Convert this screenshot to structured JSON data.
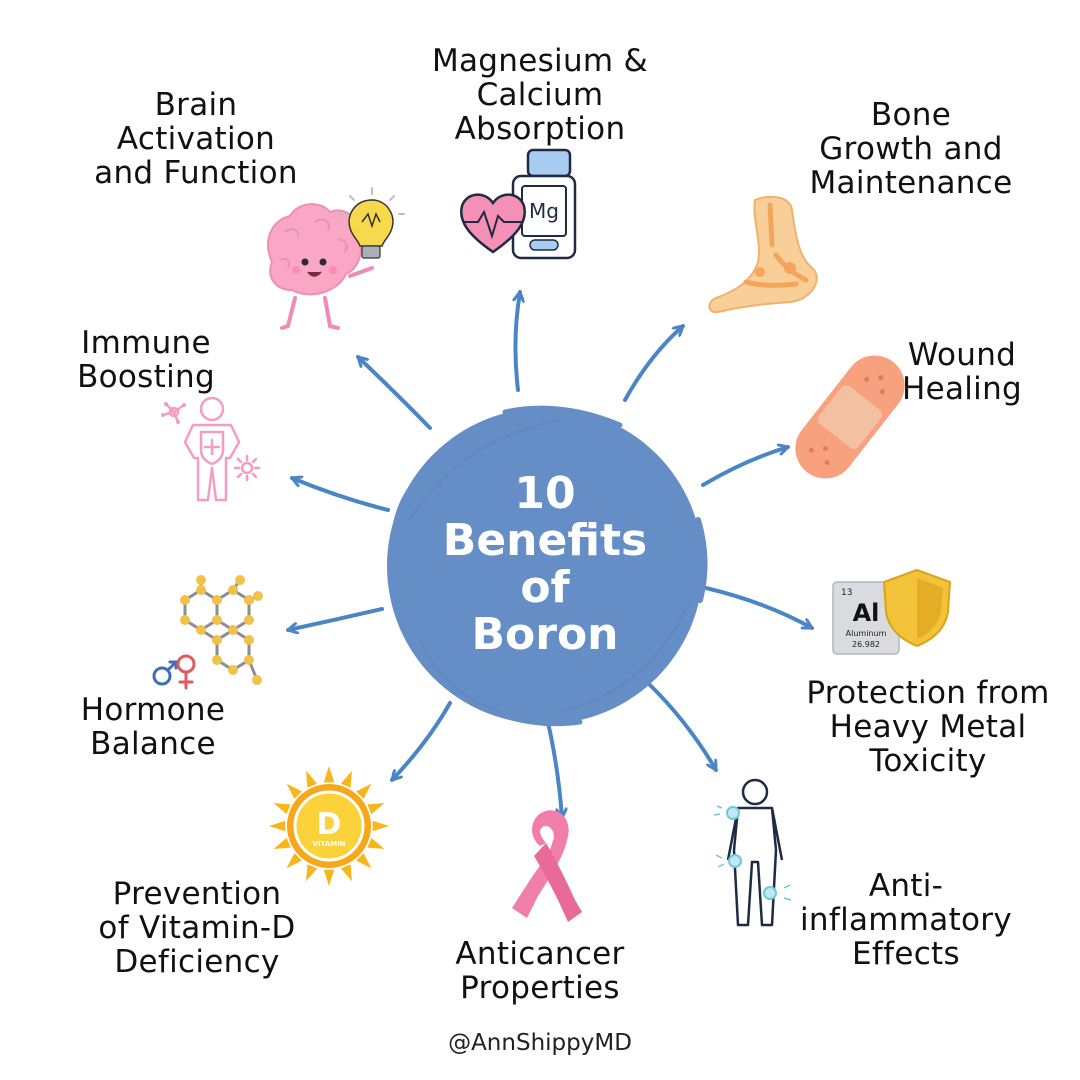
{
  "center": {
    "title": "10\nBenefits\nof\nBoron",
    "fill_color": "#668ec6"
  },
  "arrow_color": "#4a86c5",
  "benefits": [
    {
      "label": "Magnesium &\nCalcium\nAbsorption",
      "icon": "magnesium-bottle-heart-icon"
    },
    {
      "label": "Bone\nGrowth and\nMaintenance",
      "icon": "foot-bone-icon"
    },
    {
      "label": "Wound\nHealing",
      "icon": "bandage-icon"
    },
    {
      "label": "Protection from\nHeavy Metal\nToxicity",
      "icon": "aluminum-shield-icon"
    },
    {
      "label": "Anti-\ninflammatory\nEffects",
      "icon": "body-joints-icon"
    },
    {
      "label": "Anticancer\nProperties",
      "icon": "pink-ribbon-icon"
    },
    {
      "label": "Prevention\nof Vitamin-D\nDeficiency",
      "icon": "vitamin-d-sun-icon"
    },
    {
      "label": "Hormone\nBalance",
      "icon": "hormone-molecule-icon"
    },
    {
      "label": "Immune\nBoosting",
      "icon": "immune-person-icon"
    },
    {
      "label": "Brain\nActivation\nand Function",
      "icon": "brain-lightbulb-icon"
    }
  ],
  "aluminum_tile": {
    "number": "13",
    "symbol": "Al",
    "name": "Aluminum",
    "mass": "26.982"
  },
  "magnesium_symbol": "Mg",
  "vitamin_badge": {
    "letter": "D",
    "text": "VITAMIN"
  },
  "footer": {
    "handle": "@AnnShippyMD"
  }
}
